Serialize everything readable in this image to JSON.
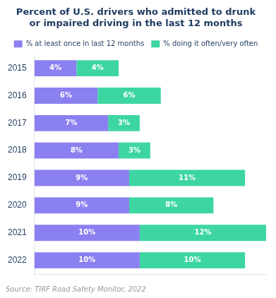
{
  "chart_data": {
    "type": "bar",
    "orientation": "horizontal",
    "stacked": true,
    "title": "Percent of U.S. drivers who admitted to drunk\nor impaired driving in the last 12 months",
    "categories": [
      "2015",
      "2016",
      "2017",
      "2018",
      "2019",
      "2020",
      "2021",
      "2022"
    ],
    "series": [
      {
        "name": "% at least once in last 12 months",
        "color": "#8B80F0",
        "values": [
          4,
          6,
          7,
          8,
          9,
          9,
          10,
          10
        ],
        "value_labels": [
          "4%",
          "6%",
          "7%",
          "8%",
          "9%",
          "9%",
          "10%",
          "10%"
        ]
      },
      {
        "name": "% doing it often/very often",
        "color": "#3DD6A3",
        "values": [
          4,
          6,
          3,
          3,
          11,
          8,
          12,
          10
        ],
        "value_labels": [
          "4%",
          "6%",
          "3%",
          "3%",
          "11%",
          "8%",
          "12%",
          "10%"
        ]
      }
    ],
    "xlim": [
      0,
      22
    ],
    "grid": false,
    "legend": "top",
    "data_labels": true,
    "tick_labels": "y",
    "annotations": [
      "Source: TIRF Road Safety Monitor, 2022"
    ]
  }
}
